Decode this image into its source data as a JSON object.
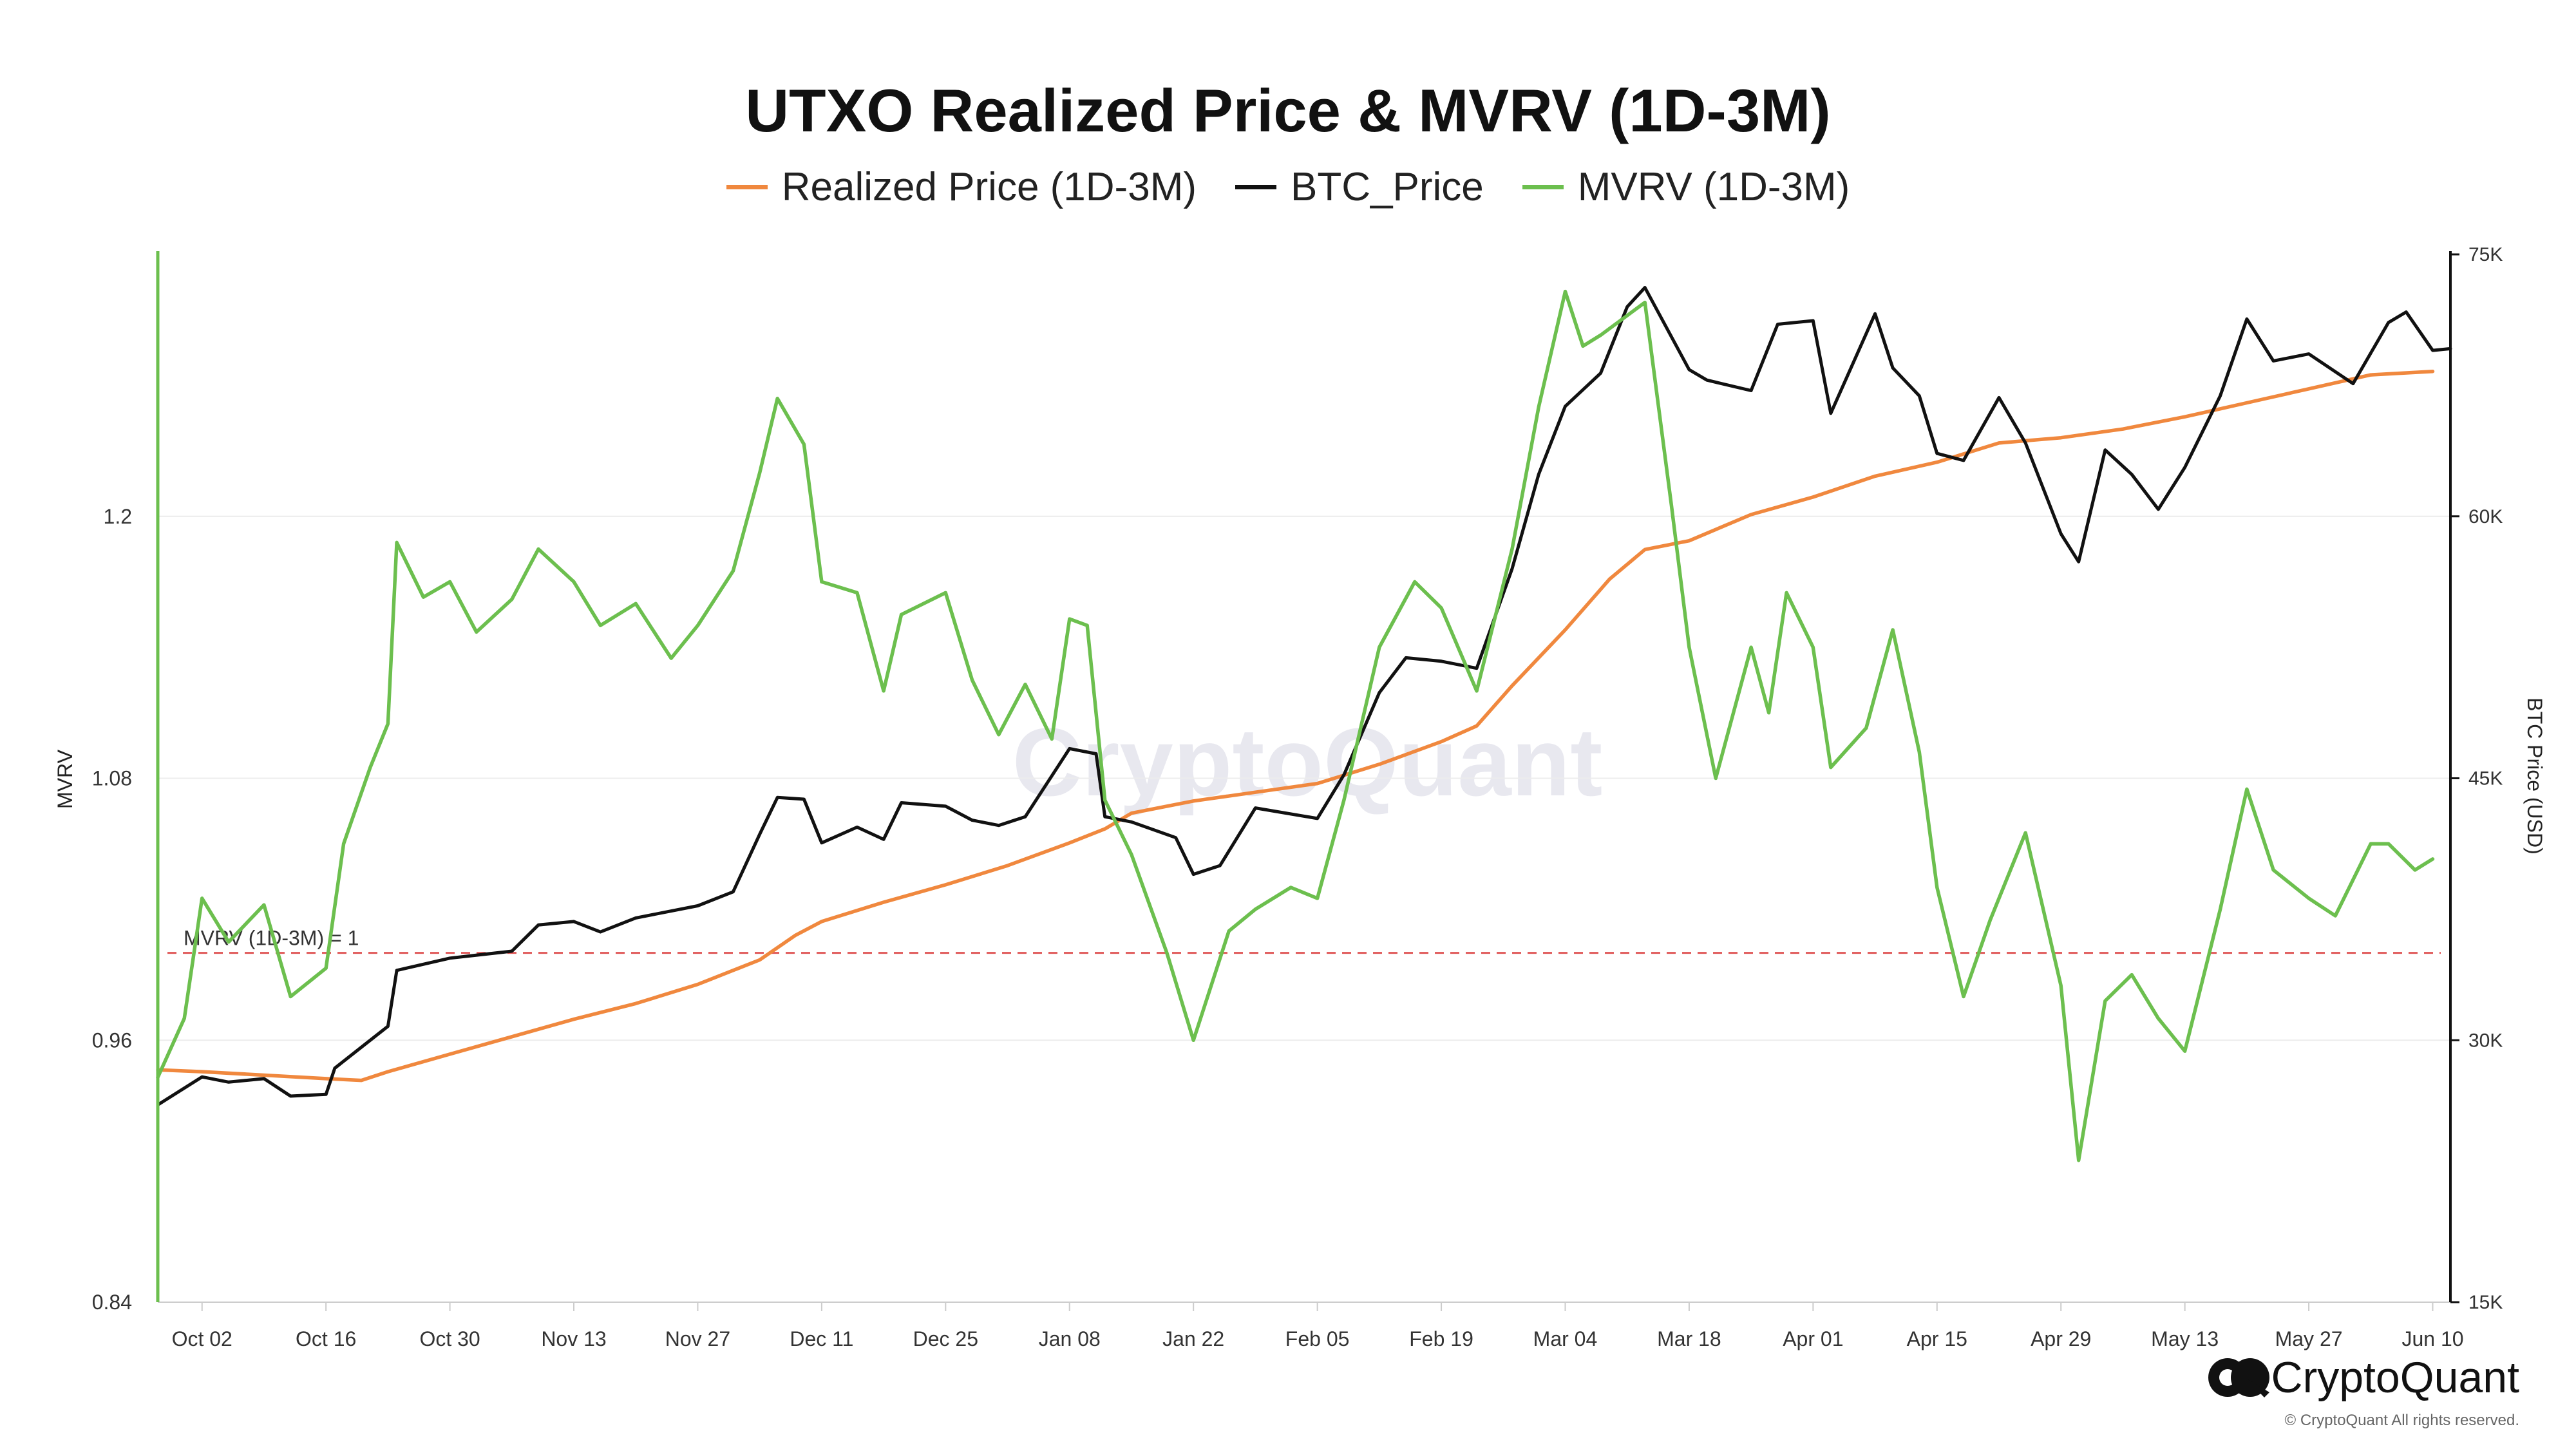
{
  "chart_title": "UTXO Realized Price & MVRV (1D-3M)",
  "legend": [
    {
      "label": "Realized Price (1D-3M)",
      "color": "#F0883E"
    },
    {
      "label": "BTC_Price",
      "color": "#111111"
    },
    {
      "label": "MVRV (1D-3M)",
      "color": "#6CBF4E"
    }
  ],
  "watermark": "CryptoQuant",
  "brand": {
    "name": "CryptoQuant",
    "copyright": "© CryptoQuant All rights reserved."
  },
  "chart_data": {
    "type": "line",
    "title": "UTXO Realized Price & MVRV (1D-3M)",
    "xlabel": "",
    "x_ticks": [
      "Oct 02",
      "Oct 16",
      "Oct 30",
      "Nov 13",
      "Nov 27",
      "Dec 11",
      "Dec 25",
      "Jan 08",
      "Jan 22",
      "Feb 05",
      "Feb 19",
      "Mar 04",
      "Mar 18",
      "Apr 01",
      "Apr 15",
      "Apr 29",
      "May 13",
      "May 27",
      "Jun 10"
    ],
    "y_left": {
      "label": "MVRV",
      "range": [
        0.84,
        1.32
      ],
      "ticks": [
        "1.2",
        "1.08",
        "0.96",
        "0.84"
      ]
    },
    "y_right": {
      "label": "BTC Price (USD)",
      "range": [
        15000,
        75000
      ],
      "ticks": [
        "75K",
        "60K",
        "45K",
        "30K",
        "15K"
      ]
    },
    "reference_line": {
      "label": "MVRV (1D-3M) = 1",
      "value": 1.0,
      "axis": "left",
      "color": "#E05A5A"
    },
    "series": [
      {
        "name": "Realized Price (1D-3M)",
        "axis": "right",
        "color": "#F0883E",
        "points": [
          [
            "Sep 27",
            28300
          ],
          [
            "Oct 02",
            28200
          ],
          [
            "Oct 09",
            28000
          ],
          [
            "Oct 16",
            27800
          ],
          [
            "Oct 20",
            27700
          ],
          [
            "Oct 23",
            28200
          ],
          [
            "Oct 30",
            29200
          ],
          [
            "Nov 06",
            30200
          ],
          [
            "Nov 13",
            31200
          ],
          [
            "Nov 20",
            32100
          ],
          [
            "Nov 27",
            33200
          ],
          [
            "Dec 04",
            34600
          ],
          [
            "Dec 08",
            36000
          ],
          [
            "Dec 11",
            36800
          ],
          [
            "Dec 18",
            37900
          ],
          [
            "Dec 25",
            38900
          ],
          [
            "Jan 01",
            40000
          ],
          [
            "Jan 08",
            41300
          ],
          [
            "Jan 12",
            42100
          ],
          [
            "Jan 15",
            43000
          ],
          [
            "Jan 22",
            43700
          ],
          [
            "Jan 29",
            44200
          ],
          [
            "Feb 05",
            44700
          ],
          [
            "Feb 12",
            45800
          ],
          [
            "Feb 19",
            47100
          ],
          [
            "Feb 23",
            48000
          ],
          [
            "Feb 27",
            50300
          ],
          [
            "Mar 04",
            53500
          ],
          [
            "Mar 09",
            56400
          ],
          [
            "Mar 13",
            58100
          ],
          [
            "Mar 18",
            58600
          ],
          [
            "Mar 25",
            60100
          ],
          [
            "Apr 01",
            61100
          ],
          [
            "Apr 08",
            62300
          ],
          [
            "Apr 15",
            63100
          ],
          [
            "Apr 22",
            64200
          ],
          [
            "Apr 29",
            64500
          ],
          [
            "May 06",
            65000
          ],
          [
            "May 13",
            65700
          ],
          [
            "May 20",
            66500
          ],
          [
            "May 27",
            67300
          ],
          [
            "Jun 03",
            68100
          ],
          [
            "Jun 10",
            68300
          ]
        ]
      },
      {
        "name": "BTC_Price",
        "axis": "right",
        "color": "#111111",
        "points": [
          [
            "Sep 27",
            26300
          ],
          [
            "Oct 02",
            27900
          ],
          [
            "Oct 05",
            27600
          ],
          [
            "Oct 09",
            27800
          ],
          [
            "Oct 12",
            26800
          ],
          [
            "Oct 16",
            26900
          ],
          [
            "Oct 17",
            28400
          ],
          [
            "Oct 20",
            29600
          ],
          [
            "Oct 23",
            30800
          ],
          [
            "Oct 24",
            34000
          ],
          [
            "Oct 30",
            34700
          ],
          [
            "Nov 06",
            35100
          ],
          [
            "Nov 09",
            36600
          ],
          [
            "Nov 13",
            36800
          ],
          [
            "Nov 16",
            36200
          ],
          [
            "Nov 20",
            37000
          ],
          [
            "Nov 27",
            37700
          ],
          [
            "Dec 01",
            38500
          ],
          [
            "Dec 04",
            41800
          ],
          [
            "Dec 06",
            43900
          ],
          [
            "Dec 09",
            43800
          ],
          [
            "Dec 11",
            41300
          ],
          [
            "Dec 15",
            42200
          ],
          [
            "Dec 18",
            41500
          ],
          [
            "Dec 20",
            43600
          ],
          [
            "Dec 25",
            43400
          ],
          [
            "Dec 28",
            42600
          ],
          [
            "Dec 31",
            42300
          ],
          [
            "Jan 03",
            42800
          ],
          [
            "Jan 08",
            46700
          ],
          [
            "Jan 11",
            46400
          ],
          [
            "Jan 12",
            42800
          ],
          [
            "Jan 15",
            42500
          ],
          [
            "Jan 20",
            41600
          ],
          [
            "Jan 22",
            39500
          ],
          [
            "Jan 25",
            40000
          ],
          [
            "Jan 29",
            43300
          ],
          [
            "Feb 05",
            42700
          ],
          [
            "Feb 08",
            45200
          ],
          [
            "Feb 12",
            49900
          ],
          [
            "Feb 15",
            51900
          ],
          [
            "Feb 19",
            51700
          ],
          [
            "Feb 23",
            51300
          ],
          [
            "Feb 27",
            57000
          ],
          [
            "Mar 01",
            62400
          ],
          [
            "Mar 04",
            66300
          ],
          [
            "Mar 08",
            68200
          ],
          [
            "Mar 11",
            72000
          ],
          [
            "Mar 13",
            73100
          ],
          [
            "Mar 18",
            68400
          ],
          [
            "Mar 20",
            67800
          ],
          [
            "Mar 25",
            67200
          ],
          [
            "Mar 28",
            71000
          ],
          [
            "Apr 01",
            71200
          ],
          [
            "Apr 03",
            65900
          ],
          [
            "Apr 08",
            71600
          ],
          [
            "Apr 10",
            68500
          ],
          [
            "Apr 13",
            66900
          ],
          [
            "Apr 15",
            63600
          ],
          [
            "Apr 18",
            63200
          ],
          [
            "Apr 22",
            66800
          ],
          [
            "Apr 25",
            64200
          ],
          [
            "Apr 29",
            59000
          ],
          [
            "May 01",
            57400
          ],
          [
            "May 04",
            63800
          ],
          [
            "May 07",
            62400
          ],
          [
            "May 10",
            60400
          ],
          [
            "May 13",
            62800
          ],
          [
            "May 17",
            66900
          ],
          [
            "May 20",
            71300
          ],
          [
            "May 23",
            68900
          ],
          [
            "May 27",
            69300
          ],
          [
            "Jun 01",
            67600
          ],
          [
            "Jun 05",
            71100
          ],
          [
            "Jun 07",
            71700
          ],
          [
            "Jun 10",
            69500
          ],
          [
            "Jun 12",
            69600
          ]
        ]
      },
      {
        "name": "MVRV (1D-3M)",
        "axis": "left",
        "color": "#6CBF4E",
        "points": [
          [
            "Sep 27",
            0.943
          ],
          [
            "Sep 30",
            0.97
          ],
          [
            "Oct 02",
            1.025
          ],
          [
            "Oct 05",
            1.005
          ],
          [
            "Oct 09",
            1.022
          ],
          [
            "Oct 12",
            0.98
          ],
          [
            "Oct 16",
            0.993
          ],
          [
            "Oct 18",
            1.05
          ],
          [
            "Oct 21",
            1.085
          ],
          [
            "Oct 23",
            1.105
          ],
          [
            "Oct 24",
            1.188
          ],
          [
            "Oct 27",
            1.163
          ],
          [
            "Oct 30",
            1.17
          ],
          [
            "Nov 02",
            1.147
          ],
          [
            "Nov 06",
            1.162
          ],
          [
            "Nov 09",
            1.185
          ],
          [
            "Nov 13",
            1.17
          ],
          [
            "Nov 16",
            1.15
          ],
          [
            "Nov 20",
            1.16
          ],
          [
            "Nov 24",
            1.135
          ],
          [
            "Nov 27",
            1.15
          ],
          [
            "Dec 01",
            1.175
          ],
          [
            "Dec 04",
            1.22
          ],
          [
            "Dec 06",
            1.254
          ],
          [
            "Dec 09",
            1.233
          ],
          [
            "Dec 11",
            1.17
          ],
          [
            "Dec 15",
            1.165
          ],
          [
            "Dec 18",
            1.12
          ],
          [
            "Dec 20",
            1.155
          ],
          [
            "Dec 25",
            1.165
          ],
          [
            "Dec 28",
            1.125
          ],
          [
            "Dec 31",
            1.1
          ],
          [
            "Jan 03",
            1.123
          ],
          [
            "Jan 06",
            1.098
          ],
          [
            "Jan 08",
            1.153
          ],
          [
            "Jan 10",
            1.15
          ],
          [
            "Jan 12",
            1.07
          ],
          [
            "Jan 15",
            1.045
          ],
          [
            "Jan 19",
            1.0
          ],
          [
            "Jan 22",
            0.96
          ],
          [
            "Jan 26",
            1.01
          ],
          [
            "Jan 29",
            1.02
          ],
          [
            "Feb 02",
            1.03
          ],
          [
            "Feb 05",
            1.025
          ],
          [
            "Feb 08",
            1.07
          ],
          [
            "Feb 12",
            1.14
          ],
          [
            "Feb 16",
            1.17
          ],
          [
            "Feb 19",
            1.158
          ],
          [
            "Feb 23",
            1.12
          ],
          [
            "Feb 27",
            1.185
          ],
          [
            "Mar 01",
            1.25
          ],
          [
            "Mar 04",
            1.303
          ],
          [
            "Mar 06",
            1.278
          ],
          [
            "Mar 08",
            1.283
          ],
          [
            "Mar 11",
            1.292
          ],
          [
            "Mar 13",
            1.298
          ],
          [
            "Mar 16",
            1.205
          ],
          [
            "Mar 18",
            1.14
          ],
          [
            "Mar 21",
            1.08
          ],
          [
            "Mar 25",
            1.14
          ],
          [
            "Mar 27",
            1.11
          ],
          [
            "Mar 29",
            1.165
          ],
          [
            "Apr 01",
            1.14
          ],
          [
            "Apr 03",
            1.085
          ],
          [
            "Apr 07",
            1.103
          ],
          [
            "Apr 10",
            1.148
          ],
          [
            "Apr 13",
            1.092
          ],
          [
            "Apr 15",
            1.03
          ],
          [
            "Apr 18",
            0.98
          ],
          [
            "Apr 21",
            1.015
          ],
          [
            "Apr 25",
            1.055
          ],
          [
            "Apr 29",
            0.985
          ],
          [
            "May 01",
            0.905
          ],
          [
            "May 04",
            0.978
          ],
          [
            "May 07",
            0.99
          ],
          [
            "May 10",
            0.97
          ],
          [
            "May 13",
            0.955
          ],
          [
            "May 17",
            1.02
          ],
          [
            "May 20",
            1.075
          ],
          [
            "May 23",
            1.038
          ],
          [
            "May 27",
            1.025
          ],
          [
            "May 30",
            1.017
          ],
          [
            "Jun 03",
            1.05
          ],
          [
            "Jun 05",
            1.05
          ],
          [
            "Jun 08",
            1.038
          ],
          [
            "Jun 10",
            1.043
          ]
        ]
      }
    ]
  }
}
